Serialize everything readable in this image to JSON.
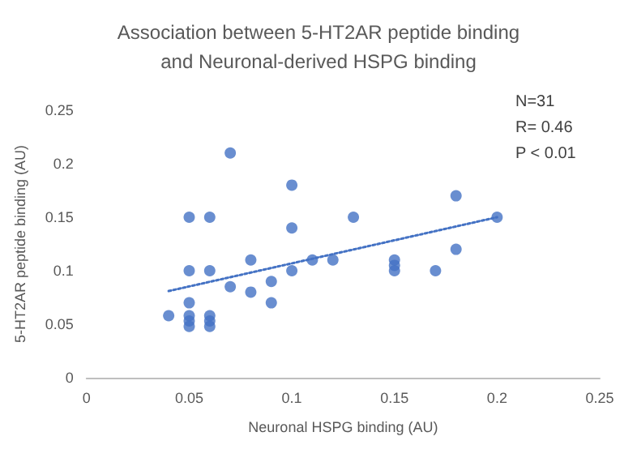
{
  "chart_data": {
    "type": "scatter",
    "title": "Association between 5-HT2AR peptide binding\nand Neuronal-derived HSPG binding",
    "xlabel": "Neuronal HSPG binding (AU)",
    "ylabel": "5-HT2AR peptide binding (AU)",
    "series": [
      {
        "color": "#4472c4",
        "x": [
          0.04,
          0.05,
          0.05,
          0.05,
          0.05,
          0.05,
          0.05,
          0.06,
          0.06,
          0.06,
          0.06,
          0.06,
          0.07,
          0.07,
          0.08,
          0.08,
          0.09,
          0.09,
          0.1,
          0.1,
          0.1,
          0.11,
          0.12,
          0.13,
          0.15,
          0.15,
          0.15,
          0.17,
          0.18,
          0.18,
          0.2
        ],
        "values": [
          0.058,
          0.15,
          0.1,
          0.07,
          0.058,
          0.053,
          0.048,
          0.15,
          0.1,
          0.058,
          0.053,
          0.048,
          0.21,
          0.085,
          0.11,
          0.08,
          0.09,
          0.07,
          0.18,
          0.14,
          0.1,
          0.11,
          0.11,
          0.15,
          0.11,
          0.105,
          0.1,
          0.1,
          0.17,
          0.12,
          0.15
        ]
      },
      {
        "type": "line",
        "color": "#4472c4",
        "line_style": "dotted",
        "marker": "none",
        "x": [
          0.04,
          0.2
        ],
        "values": [
          0.081,
          0.15
        ]
      }
    ],
    "xlim": [
      0,
      0.25
    ],
    "xticks": [
      0,
      0.05,
      0.1,
      0.15,
      0.2,
      0.25
    ],
    "ylim": [
      0,
      0.25
    ],
    "yticks": [
      0,
      0.05,
      0.1,
      0.15,
      0.2,
      0.25
    ],
    "grid": false,
    "marker": "circle",
    "annotations": [
      "N=31",
      "R= 0.46",
      "P < 0.01"
    ]
  }
}
